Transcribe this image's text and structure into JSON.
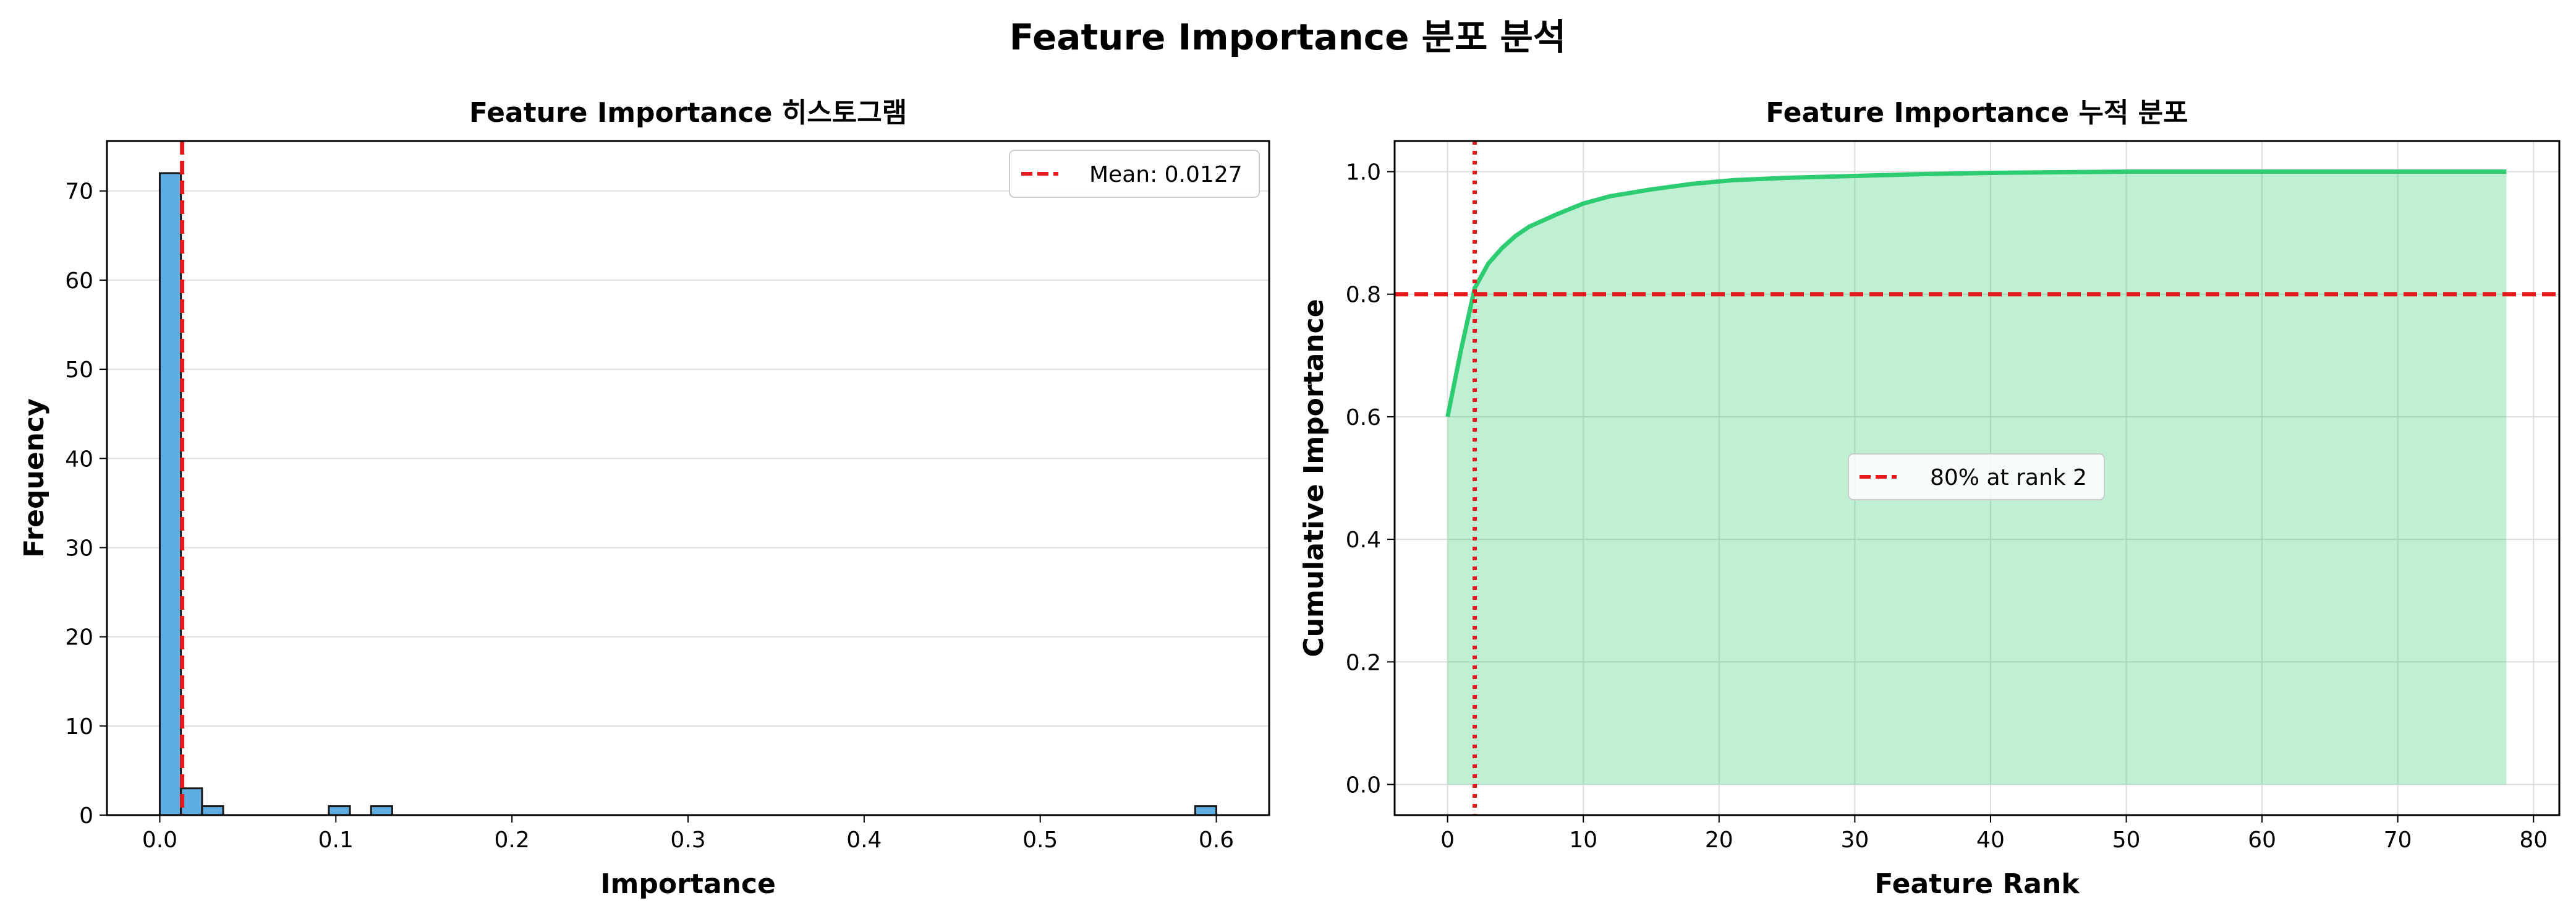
{
  "figure": {
    "title": "Feature Importance 분포 분석"
  },
  "chart_data": [
    {
      "type": "histogram",
      "title": "Feature Importance 히스토그램",
      "xlabel": "Importance",
      "ylabel": "Frequency",
      "xlim": [
        -0.03,
        0.63
      ],
      "ylim": [
        0,
        75.6
      ],
      "xticks": [
        0.0,
        0.1,
        0.2,
        0.3,
        0.4,
        0.5,
        0.6
      ],
      "yticks": [
        0,
        10,
        20,
        30,
        40,
        50,
        60,
        70
      ],
      "bin_width": 0.012,
      "bins": [
        {
          "x0": 0.0,
          "x1": 0.012,
          "count": 72
        },
        {
          "x0": 0.012,
          "x1": 0.024,
          "count": 3
        },
        {
          "x0": 0.024,
          "x1": 0.036,
          "count": 1
        },
        {
          "x0": 0.096,
          "x1": 0.108,
          "count": 1
        },
        {
          "x0": 0.12,
          "x1": 0.132,
          "count": 1
        },
        {
          "x0": 0.588,
          "x1": 0.6,
          "count": 1
        }
      ],
      "mean_line": {
        "x": 0.0127,
        "label": "Mean: 0.0127"
      },
      "bar_color": "#5dade2",
      "bar_edge": "#1a1a1a",
      "mean_color": "#e31a1c",
      "grid": "y",
      "legend": "upper-right"
    },
    {
      "type": "area",
      "title": "Feature Importance 누적 분포",
      "xlabel": "Feature Rank",
      "ylabel": "Cumulative Importance",
      "xlim": [
        -3.9,
        81.9
      ],
      "ylim": [
        -0.05,
        1.05
      ],
      "xticks": [
        0,
        10,
        20,
        30,
        40,
        50,
        60,
        70,
        80
      ],
      "yticks": [
        0.0,
        0.2,
        0.4,
        0.6,
        0.8,
        1.0
      ],
      "x": [
        0,
        1,
        2,
        3,
        4,
        5,
        6,
        8,
        10,
        12,
        15,
        18,
        21,
        25,
        30,
        35,
        40,
        45,
        50,
        60,
        70,
        78
      ],
      "y": [
        0.6,
        0.71,
        0.81,
        0.85,
        0.875,
        0.895,
        0.91,
        0.93,
        0.948,
        0.96,
        0.971,
        0.98,
        0.986,
        0.99,
        0.993,
        0.996,
        0.998,
        0.999,
        1.0,
        1.0,
        1.0,
        1.0
      ],
      "hline": {
        "y": 0.8
      },
      "vline": {
        "x": 2,
        "label": "80% at rank 2"
      },
      "line_color": "#2ecc71",
      "fill_color": "#2ecc71",
      "ref_color": "#e31a1c",
      "grid": "both",
      "legend": "center"
    }
  ]
}
